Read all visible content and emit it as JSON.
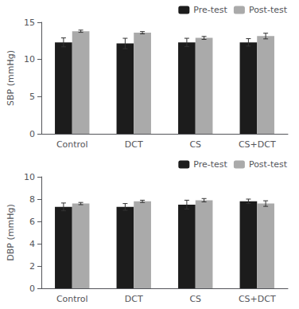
{
  "chart_data": [
    {
      "type": "bar",
      "categories": [
        "Control",
        "DCT",
        "CS",
        "CS+DCT"
      ],
      "series": [
        {
          "name": "Pre-test",
          "color": "#1c1c1c",
          "values": [
            12.3,
            12.15,
            12.3,
            12.3
          ],
          "errors": [
            0.6,
            0.7,
            0.55,
            0.5
          ]
        },
        {
          "name": "Post-test",
          "color": "#aaaaaa",
          "values": [
            13.8,
            13.6,
            12.9,
            13.15
          ],
          "errors": [
            0.15,
            0.15,
            0.2,
            0.38
          ]
        }
      ],
      "ylabel": "SBP (mmHg)",
      "ylim": [
        0,
        15
      ],
      "yticks": [
        0,
        5,
        10,
        15
      ],
      "grid": false,
      "legend": "upper right"
    },
    {
      "type": "bar",
      "categories": [
        "Control",
        "DCT",
        "CS",
        "CS+DCT"
      ],
      "series": [
        {
          "name": "Pre-test",
          "color": "#1c1c1c",
          "values": [
            7.3,
            7.3,
            7.5,
            7.8
          ],
          "errors": [
            0.35,
            0.3,
            0.4,
            0.2
          ]
        },
        {
          "name": "Post-test",
          "color": "#aaaaaa",
          "values": [
            7.6,
            7.8,
            7.9,
            7.6
          ],
          "errors": [
            0.1,
            0.1,
            0.15,
            0.25
          ]
        }
      ],
      "ylabel": "DBP (mmHg)",
      "ylim": [
        0,
        10
      ],
      "yticks": [
        0,
        2,
        4,
        6,
        8,
        10
      ],
      "grid": false,
      "legend": "upper right"
    }
  ]
}
